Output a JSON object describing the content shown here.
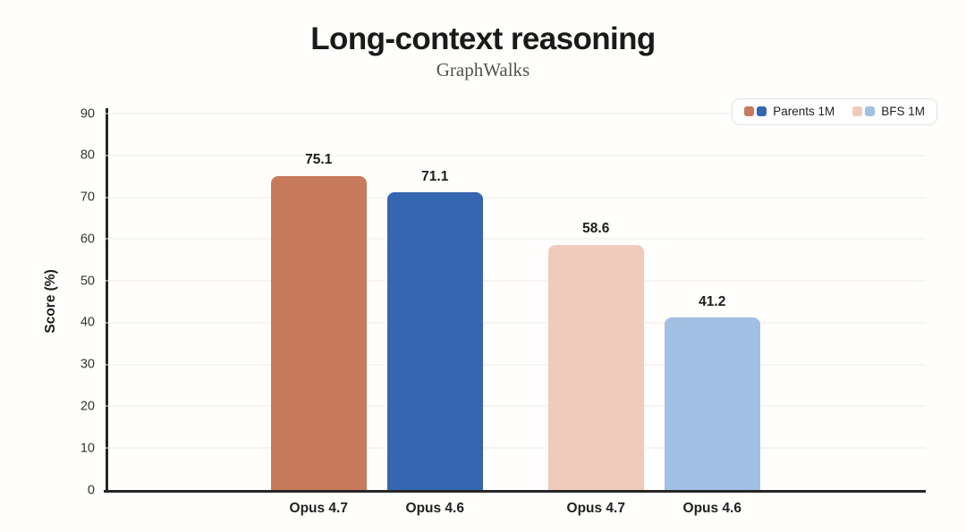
{
  "header": {
    "title": "Long-context reasoning",
    "subtitle": "GraphWalks"
  },
  "chart_data": {
    "type": "bar",
    "title": "Long-context reasoning",
    "subtitle": "GraphWalks",
    "xlabel": "",
    "ylabel": "Score (%)",
    "ylim": [
      0,
      90
    ],
    "yticks": [
      0,
      10,
      20,
      30,
      40,
      50,
      60,
      70,
      80,
      90
    ],
    "grid": true,
    "categories": [
      "Opus 4.7",
      "Opus 4.6",
      "Opus 4.7",
      "Opus 4.6"
    ],
    "values": [
      75.1,
      71.1,
      58.6,
      41.2
    ],
    "value_labels": [
      "75.1",
      "71.1",
      "58.6",
      "41.2"
    ],
    "bar_colors": [
      "#c87a5c",
      "#3766b0",
      "#eecbbc",
      "#a2c0e4"
    ],
    "bar_series": [
      "Parents 1M",
      "Parents 1M",
      "BFS 1M",
      "BFS 1M"
    ],
    "legend": {
      "position": "top-right",
      "entries": [
        {
          "label": "Parents 1M",
          "colors": [
            "#c87a5c",
            "#3766b0"
          ]
        },
        {
          "label": "BFS 1M",
          "colors": [
            "#eecbbc",
            "#a2c0e4"
          ]
        }
      ]
    },
    "style_colors": {
      "axis": "#262626",
      "grid": "#ececea",
      "title": "#1a1a1a",
      "subtitle": "#56524d"
    }
  }
}
